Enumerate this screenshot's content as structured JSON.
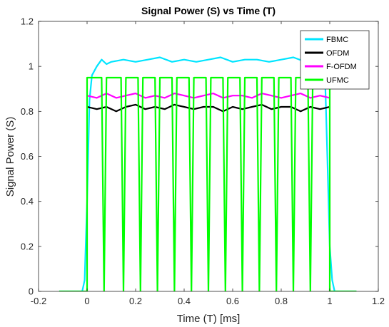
{
  "chart_data": {
    "type": "line",
    "title": "Signal Power (S) vs Time (T)",
    "xlabel": "Time (T) [ms]",
    "ylabel": "Signal Power (S)",
    "xlim": [
      -0.2,
      1.2
    ],
    "ylim": [
      0,
      1.2
    ],
    "xticks": [
      -0.2,
      0,
      0.2,
      0.4,
      0.6,
      0.8,
      1,
      1.2
    ],
    "xtick_labels": [
      "-0.2",
      "0",
      "0.2",
      "0.4",
      "0.6",
      "0.8",
      "1",
      "1.2"
    ],
    "yticks": [
      0,
      0.2,
      0.4,
      0.6,
      0.8,
      1,
      1.2
    ],
    "ytick_labels": [
      "0",
      "0.2",
      "0.4",
      "0.6",
      "0.8",
      "1",
      "1.2"
    ],
    "grid": false,
    "legend_position": "top-right",
    "series": [
      {
        "name": "FBMC",
        "color": "#00e5ff",
        "x": [
          -0.115,
          -0.02,
          -0.01,
          0.0,
          0.01,
          0.02,
          0.04,
          0.06,
          0.08,
          0.1,
          0.15,
          0.2,
          0.25,
          0.3,
          0.35,
          0.4,
          0.45,
          0.5,
          0.55,
          0.6,
          0.65,
          0.7,
          0.75,
          0.8,
          0.85,
          0.9,
          0.95,
          0.98,
          0.99,
          1.0,
          1.01,
          1.02,
          1.11
        ],
        "y": [
          0,
          0,
          0.05,
          0.4,
          0.85,
          0.96,
          1.0,
          1.03,
          1.01,
          1.02,
          1.03,
          1.02,
          1.03,
          1.04,
          1.02,
          1.03,
          1.02,
          1.03,
          1.04,
          1.02,
          1.03,
          1.03,
          1.02,
          1.03,
          1.04,
          1.02,
          1.01,
          0.98,
          0.6,
          0.2,
          0.05,
          0,
          0
        ]
      },
      {
        "name": "OFDM",
        "color": "#000000",
        "x": [
          0.0,
          0.04,
          0.08,
          0.12,
          0.16,
          0.2,
          0.24,
          0.28,
          0.32,
          0.36,
          0.4,
          0.44,
          0.48,
          0.52,
          0.56,
          0.6,
          0.64,
          0.68,
          0.72,
          0.76,
          0.8,
          0.84,
          0.88,
          0.92,
          0.96,
          1.0
        ],
        "y": [
          0.82,
          0.81,
          0.82,
          0.8,
          0.82,
          0.83,
          0.81,
          0.82,
          0.81,
          0.83,
          0.82,
          0.81,
          0.82,
          0.82,
          0.8,
          0.82,
          0.81,
          0.82,
          0.83,
          0.81,
          0.82,
          0.82,
          0.8,
          0.82,
          0.81,
          0.82
        ]
      },
      {
        "name": "F-OFDM",
        "color": "#ff00ff",
        "x": [
          0.0,
          0.04,
          0.08,
          0.12,
          0.16,
          0.2,
          0.24,
          0.28,
          0.32,
          0.36,
          0.4,
          0.44,
          0.48,
          0.52,
          0.56,
          0.6,
          0.64,
          0.68,
          0.72,
          0.76,
          0.8,
          0.84,
          0.88,
          0.92,
          0.96,
          1.0
        ],
        "y": [
          0.87,
          0.86,
          0.88,
          0.86,
          0.87,
          0.88,
          0.86,
          0.87,
          0.86,
          0.88,
          0.87,
          0.86,
          0.87,
          0.88,
          0.86,
          0.87,
          0.87,
          0.86,
          0.88,
          0.87,
          0.86,
          0.87,
          0.88,
          0.86,
          0.87,
          0.86
        ]
      },
      {
        "name": "UFMC",
        "color": "#00ff00",
        "x": [
          -0.115,
          0.0,
          0.0,
          0.06,
          0.07,
          0.08,
          0.14,
          0.15,
          0.16,
          0.21,
          0.22,
          0.23,
          0.28,
          0.29,
          0.3,
          0.35,
          0.36,
          0.37,
          0.42,
          0.43,
          0.44,
          0.49,
          0.5,
          0.51,
          0.56,
          0.57,
          0.58,
          0.63,
          0.64,
          0.65,
          0.7,
          0.71,
          0.72,
          0.77,
          0.78,
          0.79,
          0.84,
          0.85,
          0.86,
          0.91,
          0.92,
          0.93,
          0.99,
          1.0,
          1.0,
          1.11
        ],
        "y": [
          0,
          0,
          0.95,
          0.95,
          0,
          0.95,
          0.95,
          0,
          0.95,
          0.95,
          0,
          0.95,
          0.95,
          0,
          0.95,
          0.95,
          0,
          0.95,
          0.95,
          0,
          0.95,
          0.95,
          0,
          0.95,
          0.95,
          0,
          0.95,
          0.95,
          0,
          0.95,
          0.95,
          0,
          0.95,
          0.95,
          0,
          0.95,
          0.95,
          0,
          0.95,
          0.95,
          0,
          0.95,
          0.95,
          0.95,
          0,
          0
        ]
      }
    ]
  }
}
